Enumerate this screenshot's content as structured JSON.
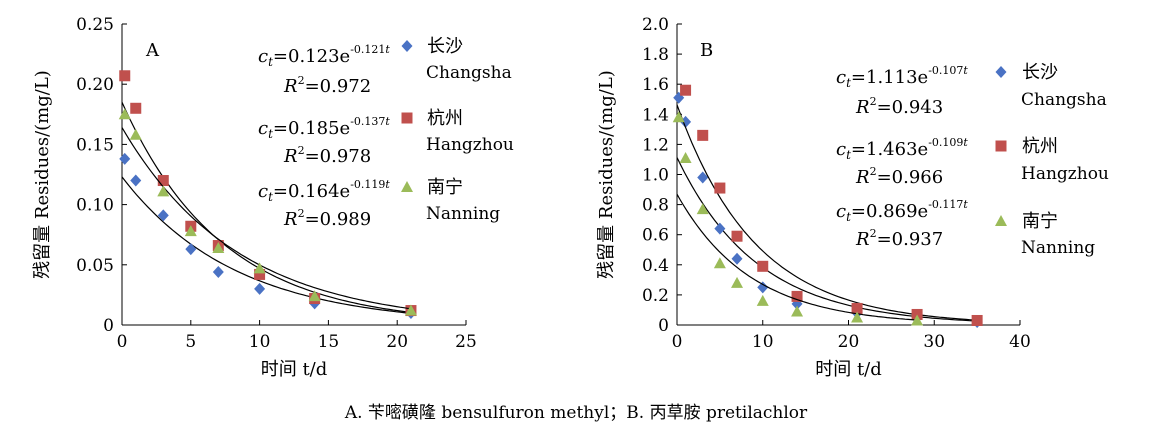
{
  "caption": "A. 苄嘧磺隆 bensulfuron methyl；B. 丙草胺 pretilachlor",
  "colors": {
    "changsha": "#4a72c4",
    "hangzhou": "#c0504d",
    "nanning": "#9bbb59",
    "curve": "#000000"
  },
  "chart_data": [
    {
      "type": "scatter",
      "panel_label": "A",
      "xlabel": "时间 t/d",
      "ylabel": "残留量 Residues/(mg/L)",
      "xlim": [
        0,
        25
      ],
      "ylim": [
        0,
        0.25
      ],
      "xticks": [
        "0",
        "5",
        "10",
        "15",
        "20",
        "25"
      ],
      "yticks": [
        "0",
        "0.05",
        "0.10",
        "0.15",
        "0.20",
        "0.25"
      ],
      "grid": false,
      "legend": "right",
      "series": [
        {
          "name": "长沙",
          "name_en": "Changsha",
          "marker": "diamond",
          "color": "#4a72c4",
          "x": [
            0.2,
            1,
            3,
            5,
            7,
            10,
            14,
            21
          ],
          "y": [
            0.138,
            0.12,
            0.091,
            0.063,
            0.044,
            0.03,
            0.018,
            0.01
          ],
          "eq_c": "0.123",
          "eq_k": "-0.121",
          "r2": "0.972"
        },
        {
          "name": "杭州",
          "name_en": "Hangzhou",
          "marker": "square",
          "color": "#c0504d",
          "x": [
            0.2,
            1,
            3,
            5,
            7,
            10,
            14,
            21
          ],
          "y": [
            0.207,
            0.18,
            0.12,
            0.082,
            0.066,
            0.042,
            0.022,
            0.012
          ],
          "eq_c": "0.185",
          "eq_k": "-0.137",
          "r2": "0.978"
        },
        {
          "name": "南宁",
          "name_en": "Nanning",
          "marker": "triangle",
          "color": "#9bbb59",
          "x": [
            0.2,
            1,
            3,
            5,
            7,
            10,
            14,
            21
          ],
          "y": [
            0.175,
            0.158,
            0.111,
            0.078,
            0.064,
            0.047,
            0.024,
            0.012
          ],
          "eq_c": "0.164",
          "eq_k": "-0.119",
          "r2": "0.989"
        }
      ]
    },
    {
      "type": "scatter",
      "panel_label": "B",
      "xlabel": "时间 t/d",
      "ylabel": "残留量 Residues/(mg/L)",
      "xlim": [
        0,
        40
      ],
      "ylim": [
        0,
        2.0
      ],
      "xticks": [
        "0",
        "10",
        "20",
        "30",
        "40"
      ],
      "yticks": [
        "0",
        "0.2",
        "0.4",
        "0.6",
        "0.8",
        "1.0",
        "1.2",
        "1.4",
        "1.6",
        "1.8",
        "2.0"
      ],
      "grid": false,
      "legend": "right",
      "series": [
        {
          "name": "长沙",
          "name_en": "Changsha",
          "marker": "diamond",
          "color": "#4a72c4",
          "x": [
            0.2,
            1,
            3,
            5,
            7,
            10,
            14,
            21,
            28,
            35
          ],
          "y": [
            1.51,
            1.35,
            0.98,
            0.64,
            0.44,
            0.25,
            0.14,
            0.08,
            0.05,
            0.02
          ],
          "eq_c": "1.113",
          "eq_k": "-0.107",
          "r2": "0.943"
        },
        {
          "name": "杭州",
          "name_en": "Hangzhou",
          "marker": "square",
          "color": "#c0504d",
          "x": [
            1,
            3,
            5,
            7,
            10,
            14,
            21,
            28,
            35
          ],
          "y": [
            1.56,
            1.26,
            0.91,
            0.59,
            0.39,
            0.19,
            0.11,
            0.07,
            0.03
          ],
          "eq_c": "1.463",
          "eq_k": "-0.109",
          "r2": "0.966"
        },
        {
          "name": "南宁",
          "name_en": "Nanning",
          "marker": "triangle",
          "color": "#9bbb59",
          "x": [
            0.2,
            1,
            3,
            5,
            7,
            10,
            14,
            21,
            28
          ],
          "y": [
            1.38,
            1.11,
            0.77,
            0.41,
            0.28,
            0.16,
            0.09,
            0.05,
            0.03
          ],
          "eq_c": "0.869",
          "eq_k": "-0.117",
          "r2": "0.937"
        }
      ]
    }
  ]
}
